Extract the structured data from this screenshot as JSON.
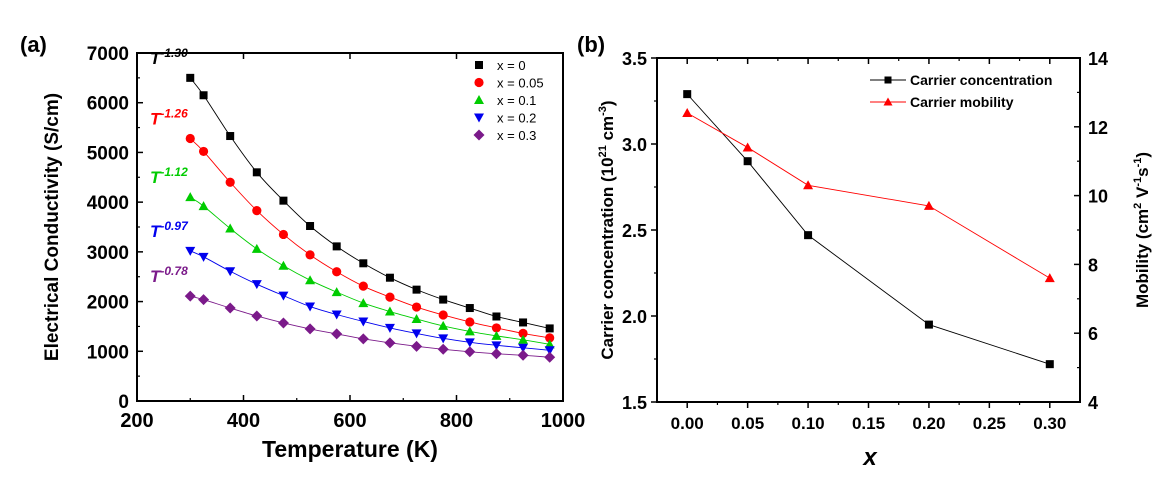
{
  "chart_data": [
    {
      "panel_label": "(a)",
      "type": "line",
      "xlabel": "Temperature (K)",
      "ylabel": "Electrical Conductivity (S/cm)",
      "xlim": [
        200,
        1000
      ],
      "ylim": [
        0,
        7000
      ],
      "xticks": [
        200,
        400,
        600,
        800,
        1000
      ],
      "yticks": [
        0,
        1000,
        2000,
        3000,
        4000,
        5000,
        6000,
        7000
      ],
      "grid": false,
      "legend_position": "top-right",
      "x": [
        300,
        325,
        375,
        425,
        475,
        525,
        575,
        625,
        675,
        725,
        775,
        825,
        875,
        925,
        975
      ],
      "series": [
        {
          "name": "x = 0",
          "color": "#000000",
          "marker": "square",
          "annotation": "T",
          "exponent": "-1.30",
          "values": [
            6500,
            6150,
            5330,
            4600,
            4030,
            3520,
            3110,
            2770,
            2480,
            2240,
            2040,
            1870,
            1700,
            1580,
            1460
          ]
        },
        {
          "name": "x = 0.05",
          "color": "#ff0000",
          "marker": "circle",
          "annotation": "T",
          "exponent": "-1.26",
          "values": [
            5280,
            5020,
            4400,
            3830,
            3350,
            2940,
            2600,
            2310,
            2090,
            1890,
            1730,
            1590,
            1470,
            1360,
            1270
          ]
        },
        {
          "name": "x = 0.1",
          "color": "#00cc00",
          "marker": "triangle-up",
          "annotation": "T",
          "exponent": "-1.12",
          "values": [
            4100,
            3920,
            3470,
            3060,
            2720,
            2430,
            2190,
            1970,
            1800,
            1650,
            1510,
            1400,
            1310,
            1230,
            1140
          ]
        },
        {
          "name": "x = 0.2",
          "color": "#0000ee",
          "marker": "triangle-down",
          "annotation": "T",
          "exponent": "-0.97",
          "values": [
            3020,
            2900,
            2610,
            2350,
            2120,
            1900,
            1740,
            1600,
            1470,
            1360,
            1260,
            1180,
            1120,
            1070,
            1020
          ]
        },
        {
          "name": "x = 0.3",
          "color": "#7b1a8a",
          "marker": "diamond",
          "annotation": "T",
          "exponent": "-0.78",
          "values": [
            2110,
            2040,
            1870,
            1710,
            1570,
            1450,
            1350,
            1250,
            1170,
            1100,
            1040,
            990,
            950,
            920,
            880
          ]
        }
      ]
    },
    {
      "panel_label": "(b)",
      "type": "line",
      "xlabel": "x",
      "ylabel": "Carrier concentration (10",
      "ylabel_sup1": "21",
      "ylabel_mid": " cm",
      "ylabel_sup2": "-3",
      "ylabel_end": ")",
      "ylabel_right": "Mobility (cm",
      "ylabel_right_sup1": "2",
      "ylabel_right_mid": " V",
      "ylabel_right_sup2": "-1",
      "ylabel_right_mid2": "s",
      "ylabel_right_sup3": "-1",
      "ylabel_right_end": ")",
      "xlim": [
        -0.025,
        0.325
      ],
      "ylim": [
        1.5,
        3.5
      ],
      "ylim_right": [
        4,
        14
      ],
      "xticks": [
        "0.00",
        "0.05",
        "0.10",
        "0.15",
        "0.20",
        "0.25",
        "0.30"
      ],
      "yticks": [
        "1.5",
        "2.0",
        "2.5",
        "3.0",
        "3.5"
      ],
      "yticks_right": [
        "4",
        "6",
        "8",
        "10",
        "12",
        "14"
      ],
      "grid": false,
      "legend_position": "top-right",
      "x": [
        0.0,
        0.05,
        0.1,
        0.2,
        0.3
      ],
      "series": [
        {
          "name": "Carrier concentration",
          "color": "#000000",
          "marker": "square",
          "axis": "left",
          "values": [
            3.29,
            2.9,
            2.47,
            1.95,
            1.72
          ]
        },
        {
          "name": "Carrier mobility",
          "color": "#ff0000",
          "marker": "triangle-up",
          "axis": "right",
          "values": [
            12.4,
            11.4,
            10.3,
            9.7,
            7.6
          ]
        }
      ]
    }
  ]
}
